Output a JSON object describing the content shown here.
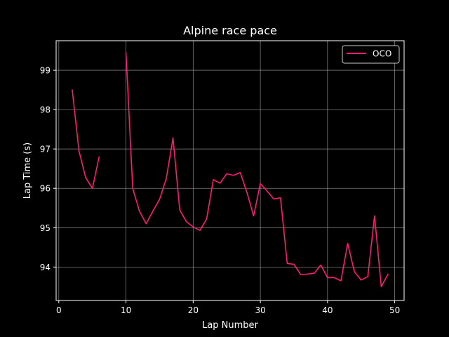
{
  "chart_data": {
    "type": "line",
    "title": "Alpine race pace",
    "xlabel": "Lap Number",
    "ylabel": "Lap Time (s)",
    "xlim": [
      -0.4,
      51.4
    ],
    "ylim": [
      93.15,
      99.75
    ],
    "xticks": [
      0,
      10,
      20,
      30,
      40,
      50
    ],
    "yticks": [
      94,
      95,
      96,
      97,
      98,
      99
    ],
    "grid": true,
    "legend_position": "top-right",
    "colors": {
      "background": "#000000",
      "axes": "#ffffff",
      "grid": "#b0b0b0",
      "series": "#ff1a75"
    },
    "series": [
      {
        "name": "OCO",
        "color": "#ff1a75",
        "segments": [
          {
            "x": [
              2,
              3,
              4,
              5,
              6
            ],
            "y": [
              98.5,
              96.95,
              96.27,
              96.0,
              96.8
            ]
          },
          {
            "x": [
              10,
              11,
              12,
              13,
              14,
              15,
              16,
              17,
              18,
              19,
              20,
              21,
              22,
              23,
              24,
              25,
              26,
              27,
              28,
              29,
              30,
              31,
              32,
              33,
              34,
              35,
              36,
              37,
              38,
              39,
              40,
              41,
              42,
              43,
              44,
              45,
              46,
              47,
              48,
              49
            ],
            "y": [
              99.45,
              96.0,
              95.42,
              95.1,
              95.42,
              95.72,
              96.25,
              97.28,
              95.45,
              95.15,
              95.02,
              94.93,
              95.22,
              96.22,
              96.13,
              96.37,
              96.33,
              96.4,
              95.9,
              95.3,
              96.12,
              95.93,
              95.73,
              95.76,
              94.09,
              94.07,
              93.81,
              93.82,
              93.84,
              94.05,
              93.73,
              93.73,
              93.65,
              94.6,
              93.88,
              93.67,
              93.76,
              95.3,
              93.5,
              93.82
            ]
          }
        ]
      }
    ]
  }
}
